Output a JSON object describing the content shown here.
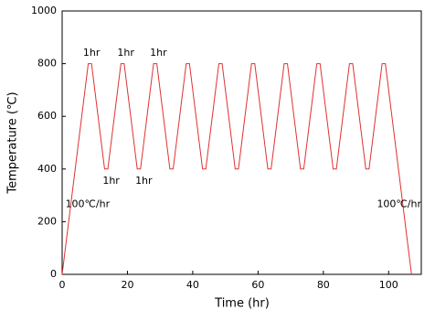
{
  "chart_data": {
    "type": "line",
    "x_label": "Time (hr)",
    "y_label": "Temperature (℃)",
    "xlim": [
      0,
      110
    ],
    "xticks": [
      0,
      20,
      40,
      60,
      80,
      100
    ],
    "ylim": [
      0,
      1000
    ],
    "yticks": [
      0,
      200,
      400,
      600,
      800,
      1000
    ],
    "series": [
      {
        "color": "#e03030",
        "x": [
          0,
          8,
          9,
          13,
          14,
          18,
          19,
          23,
          24,
          28,
          29,
          33,
          34,
          38,
          39,
          43,
          44,
          48,
          49,
          53,
          54,
          58,
          59,
          63,
          64,
          68,
          69,
          73,
          74,
          78,
          79,
          83,
          84,
          88,
          89,
          93,
          94,
          98,
          99,
          107
        ],
        "values": [
          0,
          800,
          800,
          400,
          400,
          800,
          800,
          400,
          400,
          800,
          800,
          400,
          400,
          800,
          800,
          400,
          400,
          800,
          800,
          400,
          400,
          800,
          800,
          400,
          400,
          800,
          800,
          400,
          400,
          800,
          800,
          400,
          400,
          800,
          800,
          400,
          400,
          800,
          800,
          0
        ]
      }
    ],
    "annotations": [
      {
        "text": "1hr",
        "x": 9,
        "y": 840
      },
      {
        "text": "1hr",
        "x": 19.5,
        "y": 840
      },
      {
        "text": "1hr",
        "x": 29.5,
        "y": 840
      },
      {
        "text": "1hr",
        "x": 15,
        "y": 355
      },
      {
        "text": "1hr",
        "x": 25,
        "y": 355
      },
      {
        "text": "100℃/hr",
        "x": 1,
        "y": 265
      },
      {
        "text": "100℃/hr",
        "x": 110,
        "y": 265
      }
    ]
  }
}
